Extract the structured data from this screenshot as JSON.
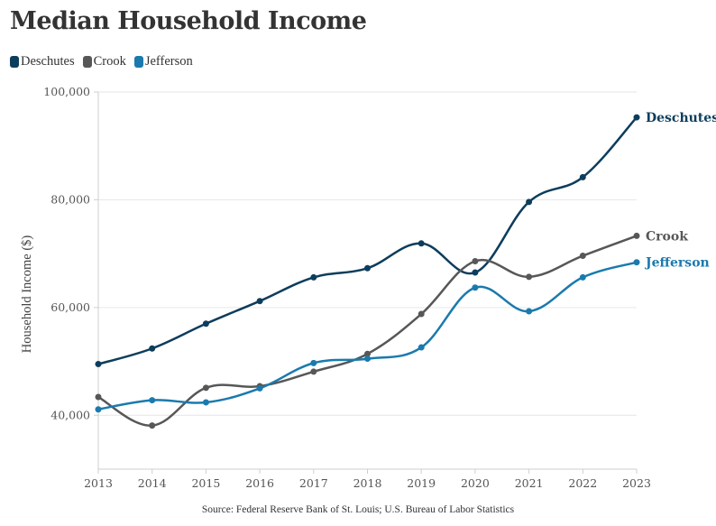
{
  "chart_data": {
    "type": "line",
    "title": "Median Household Income",
    "ylabel": "Household Income ($)",
    "xlabel": "",
    "x": [
      2013,
      2014,
      2015,
      2016,
      2017,
      2018,
      2019,
      2020,
      2021,
      2022,
      2023
    ],
    "xticks": [
      "2013",
      "2014",
      "2015",
      "2016",
      "2017",
      "2018",
      "2019",
      "2020",
      "2021",
      "2022",
      "2023"
    ],
    "yticks": [
      40000,
      60000,
      80000,
      100000
    ],
    "ytick_labels": [
      "40,000",
      "60,000",
      "80,000",
      "100,000"
    ],
    "ylim": [
      30000,
      100000
    ],
    "grid": "horizontal",
    "legend": "top-left",
    "series": [
      {
        "name": "Deschutes",
        "color": "#0d3d5c",
        "values": [
          49500,
          52400,
          57000,
          61200,
          65600,
          67300,
          71900,
          66500,
          79600,
          84200,
          95300
        ]
      },
      {
        "name": "Crook",
        "color": "#575757",
        "values": [
          43400,
          38100,
          45100,
          45400,
          48100,
          51400,
          58800,
          68600,
          65700,
          69600,
          73300
        ]
      },
      {
        "name": "Jefferson",
        "color": "#1a7aad",
        "values": [
          41100,
          42800,
          42400,
          45000,
          49700,
          50500,
          52600,
          63700,
          59300,
          65600,
          68400
        ]
      }
    ],
    "source": "Source: Federal Reserve Bank of St. Louis; U.S. Bureau of Labor Statistics"
  }
}
